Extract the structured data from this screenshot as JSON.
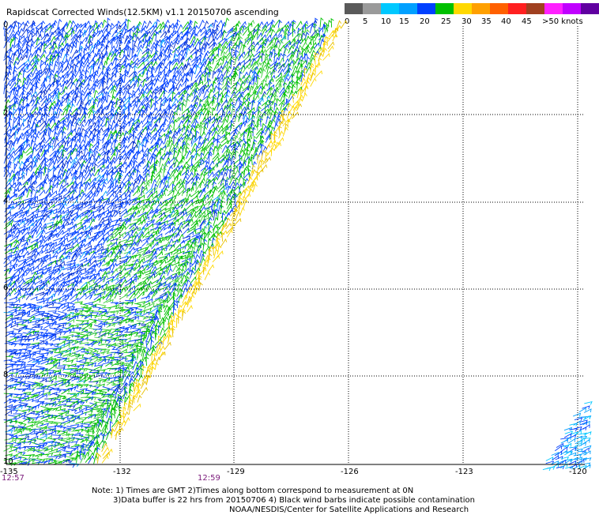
{
  "title": "Rapidscat Corrected Winds(12.5KM) v1.1 20150706 ascending",
  "legend": {
    "colors": [
      "#5a5a5a",
      "#9a9a9a",
      "#00c8ff",
      "#00a0ff",
      "#0040ff",
      "#00c000",
      "#ffd800",
      "#ffa000",
      "#ff6000",
      "#ff2020",
      "#a04020",
      "#ff20ff",
      "#c000ff",
      "#6000a0"
    ],
    "labels": [
      "0",
      "5",
      "10",
      "15",
      "20",
      "25",
      "30",
      "35",
      "40",
      "45",
      ">50 knots"
    ]
  },
  "map": {
    "lon_labels": [
      "-135",
      "-132",
      "-129",
      "-126",
      "-123",
      "-120"
    ],
    "lat_labels": [
      "0",
      "2",
      "4",
      "6",
      "8",
      "10"
    ],
    "time_labels": [
      "12:57",
      "12:59"
    ]
  },
  "notes": {
    "line1": "Note: 1) Times are GMT 2)Times along bottom correspond to measurement at 0N",
    "line2": "3)Data buffer is 22 hrs from 20150706 4) Black wind barbs indicate possible contamination",
    "line3": "NOAA/NESDIS/Center for Satellite Applications and Research"
  }
}
